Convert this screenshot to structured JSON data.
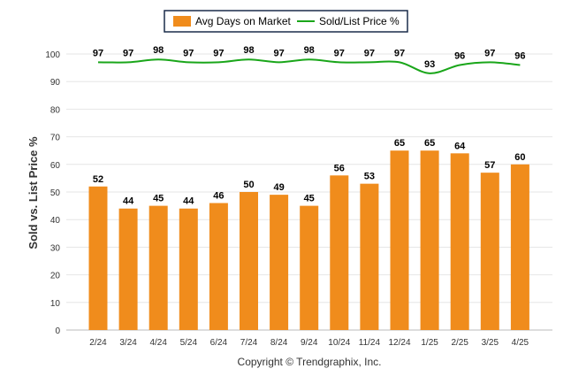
{
  "chart_data": {
    "type": "bar",
    "categories": [
      "2/24",
      "3/24",
      "4/24",
      "5/24",
      "6/24",
      "7/24",
      "8/24",
      "9/24",
      "10/24",
      "11/24",
      "12/24",
      "1/25",
      "2/25",
      "3/25",
      "4/25"
    ],
    "series": [
      {
        "name": "Avg Days on Market",
        "type": "bar",
        "color": "#f08c1c",
        "values": [
          52,
          44,
          45,
          44,
          46,
          50,
          49,
          45,
          56,
          53,
          65,
          65,
          64,
          57,
          60
        ]
      },
      {
        "name": "Sold/List Price %",
        "type": "line",
        "color": "#1aa61a",
        "values": [
          97,
          97,
          98,
          97,
          97,
          98,
          97,
          98,
          97,
          97,
          97,
          93,
          96,
          97,
          96
        ]
      }
    ],
    "ylabel": "Sold vs. List Price %",
    "ylim": [
      0,
      100
    ],
    "yticks": [
      0,
      10,
      20,
      30,
      40,
      50,
      60,
      70,
      80,
      90,
      100
    ],
    "grid": true,
    "legend_position": "top-center"
  },
  "footer": {
    "copyright": "Copyright © Trendgraphix, Inc."
  }
}
